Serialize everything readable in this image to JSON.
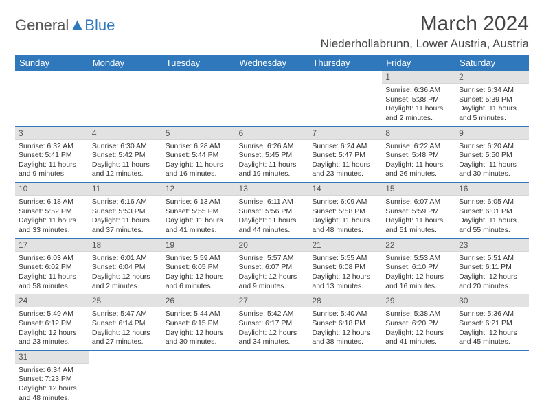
{
  "logo": {
    "part1": "General",
    "part2": "Blue"
  },
  "title": "March 2024",
  "location": "Niederhollabrunn, Lower Austria, Austria",
  "headers": [
    "Sunday",
    "Monday",
    "Tuesday",
    "Wednesday",
    "Thursday",
    "Friday",
    "Saturday"
  ],
  "colors": {
    "header_bg": "#2f78bc",
    "header_fg": "#ffffff",
    "daynum_bg": "#e2e2e2",
    "border": "#2f78bc"
  },
  "weeks": [
    [
      {
        "n": "",
        "l": []
      },
      {
        "n": "",
        "l": []
      },
      {
        "n": "",
        "l": []
      },
      {
        "n": "",
        "l": []
      },
      {
        "n": "",
        "l": []
      },
      {
        "n": "1",
        "l": [
          "Sunrise: 6:36 AM",
          "Sunset: 5:38 PM",
          "Daylight: 11 hours and 2 minutes."
        ]
      },
      {
        "n": "2",
        "l": [
          "Sunrise: 6:34 AM",
          "Sunset: 5:39 PM",
          "Daylight: 11 hours and 5 minutes."
        ]
      }
    ],
    [
      {
        "n": "3",
        "l": [
          "Sunrise: 6:32 AM",
          "Sunset: 5:41 PM",
          "Daylight: 11 hours and 9 minutes."
        ]
      },
      {
        "n": "4",
        "l": [
          "Sunrise: 6:30 AM",
          "Sunset: 5:42 PM",
          "Daylight: 11 hours and 12 minutes."
        ]
      },
      {
        "n": "5",
        "l": [
          "Sunrise: 6:28 AM",
          "Sunset: 5:44 PM",
          "Daylight: 11 hours and 16 minutes."
        ]
      },
      {
        "n": "6",
        "l": [
          "Sunrise: 6:26 AM",
          "Sunset: 5:45 PM",
          "Daylight: 11 hours and 19 minutes."
        ]
      },
      {
        "n": "7",
        "l": [
          "Sunrise: 6:24 AM",
          "Sunset: 5:47 PM",
          "Daylight: 11 hours and 23 minutes."
        ]
      },
      {
        "n": "8",
        "l": [
          "Sunrise: 6:22 AM",
          "Sunset: 5:48 PM",
          "Daylight: 11 hours and 26 minutes."
        ]
      },
      {
        "n": "9",
        "l": [
          "Sunrise: 6:20 AM",
          "Sunset: 5:50 PM",
          "Daylight: 11 hours and 30 minutes."
        ]
      }
    ],
    [
      {
        "n": "10",
        "l": [
          "Sunrise: 6:18 AM",
          "Sunset: 5:52 PM",
          "Daylight: 11 hours and 33 minutes."
        ]
      },
      {
        "n": "11",
        "l": [
          "Sunrise: 6:16 AM",
          "Sunset: 5:53 PM",
          "Daylight: 11 hours and 37 minutes."
        ]
      },
      {
        "n": "12",
        "l": [
          "Sunrise: 6:13 AM",
          "Sunset: 5:55 PM",
          "Daylight: 11 hours and 41 minutes."
        ]
      },
      {
        "n": "13",
        "l": [
          "Sunrise: 6:11 AM",
          "Sunset: 5:56 PM",
          "Daylight: 11 hours and 44 minutes."
        ]
      },
      {
        "n": "14",
        "l": [
          "Sunrise: 6:09 AM",
          "Sunset: 5:58 PM",
          "Daylight: 11 hours and 48 minutes."
        ]
      },
      {
        "n": "15",
        "l": [
          "Sunrise: 6:07 AM",
          "Sunset: 5:59 PM",
          "Daylight: 11 hours and 51 minutes."
        ]
      },
      {
        "n": "16",
        "l": [
          "Sunrise: 6:05 AM",
          "Sunset: 6:01 PM",
          "Daylight: 11 hours and 55 minutes."
        ]
      }
    ],
    [
      {
        "n": "17",
        "l": [
          "Sunrise: 6:03 AM",
          "Sunset: 6:02 PM",
          "Daylight: 11 hours and 58 minutes."
        ]
      },
      {
        "n": "18",
        "l": [
          "Sunrise: 6:01 AM",
          "Sunset: 6:04 PM",
          "Daylight: 12 hours and 2 minutes."
        ]
      },
      {
        "n": "19",
        "l": [
          "Sunrise: 5:59 AM",
          "Sunset: 6:05 PM",
          "Daylight: 12 hours and 6 minutes."
        ]
      },
      {
        "n": "20",
        "l": [
          "Sunrise: 5:57 AM",
          "Sunset: 6:07 PM",
          "Daylight: 12 hours and 9 minutes."
        ]
      },
      {
        "n": "21",
        "l": [
          "Sunrise: 5:55 AM",
          "Sunset: 6:08 PM",
          "Daylight: 12 hours and 13 minutes."
        ]
      },
      {
        "n": "22",
        "l": [
          "Sunrise: 5:53 AM",
          "Sunset: 6:10 PM",
          "Daylight: 12 hours and 16 minutes."
        ]
      },
      {
        "n": "23",
        "l": [
          "Sunrise: 5:51 AM",
          "Sunset: 6:11 PM",
          "Daylight: 12 hours and 20 minutes."
        ]
      }
    ],
    [
      {
        "n": "24",
        "l": [
          "Sunrise: 5:49 AM",
          "Sunset: 6:12 PM",
          "Daylight: 12 hours and 23 minutes."
        ]
      },
      {
        "n": "25",
        "l": [
          "Sunrise: 5:47 AM",
          "Sunset: 6:14 PM",
          "Daylight: 12 hours and 27 minutes."
        ]
      },
      {
        "n": "26",
        "l": [
          "Sunrise: 5:44 AM",
          "Sunset: 6:15 PM",
          "Daylight: 12 hours and 30 minutes."
        ]
      },
      {
        "n": "27",
        "l": [
          "Sunrise: 5:42 AM",
          "Sunset: 6:17 PM",
          "Daylight: 12 hours and 34 minutes."
        ]
      },
      {
        "n": "28",
        "l": [
          "Sunrise: 5:40 AM",
          "Sunset: 6:18 PM",
          "Daylight: 12 hours and 38 minutes."
        ]
      },
      {
        "n": "29",
        "l": [
          "Sunrise: 5:38 AM",
          "Sunset: 6:20 PM",
          "Daylight: 12 hours and 41 minutes."
        ]
      },
      {
        "n": "30",
        "l": [
          "Sunrise: 5:36 AM",
          "Sunset: 6:21 PM",
          "Daylight: 12 hours and 45 minutes."
        ]
      }
    ],
    [
      {
        "n": "31",
        "l": [
          "Sunrise: 6:34 AM",
          "Sunset: 7:23 PM",
          "Daylight: 12 hours and 48 minutes."
        ]
      },
      {
        "n": "",
        "l": []
      },
      {
        "n": "",
        "l": []
      },
      {
        "n": "",
        "l": []
      },
      {
        "n": "",
        "l": []
      },
      {
        "n": "",
        "l": []
      },
      {
        "n": "",
        "l": []
      }
    ]
  ]
}
